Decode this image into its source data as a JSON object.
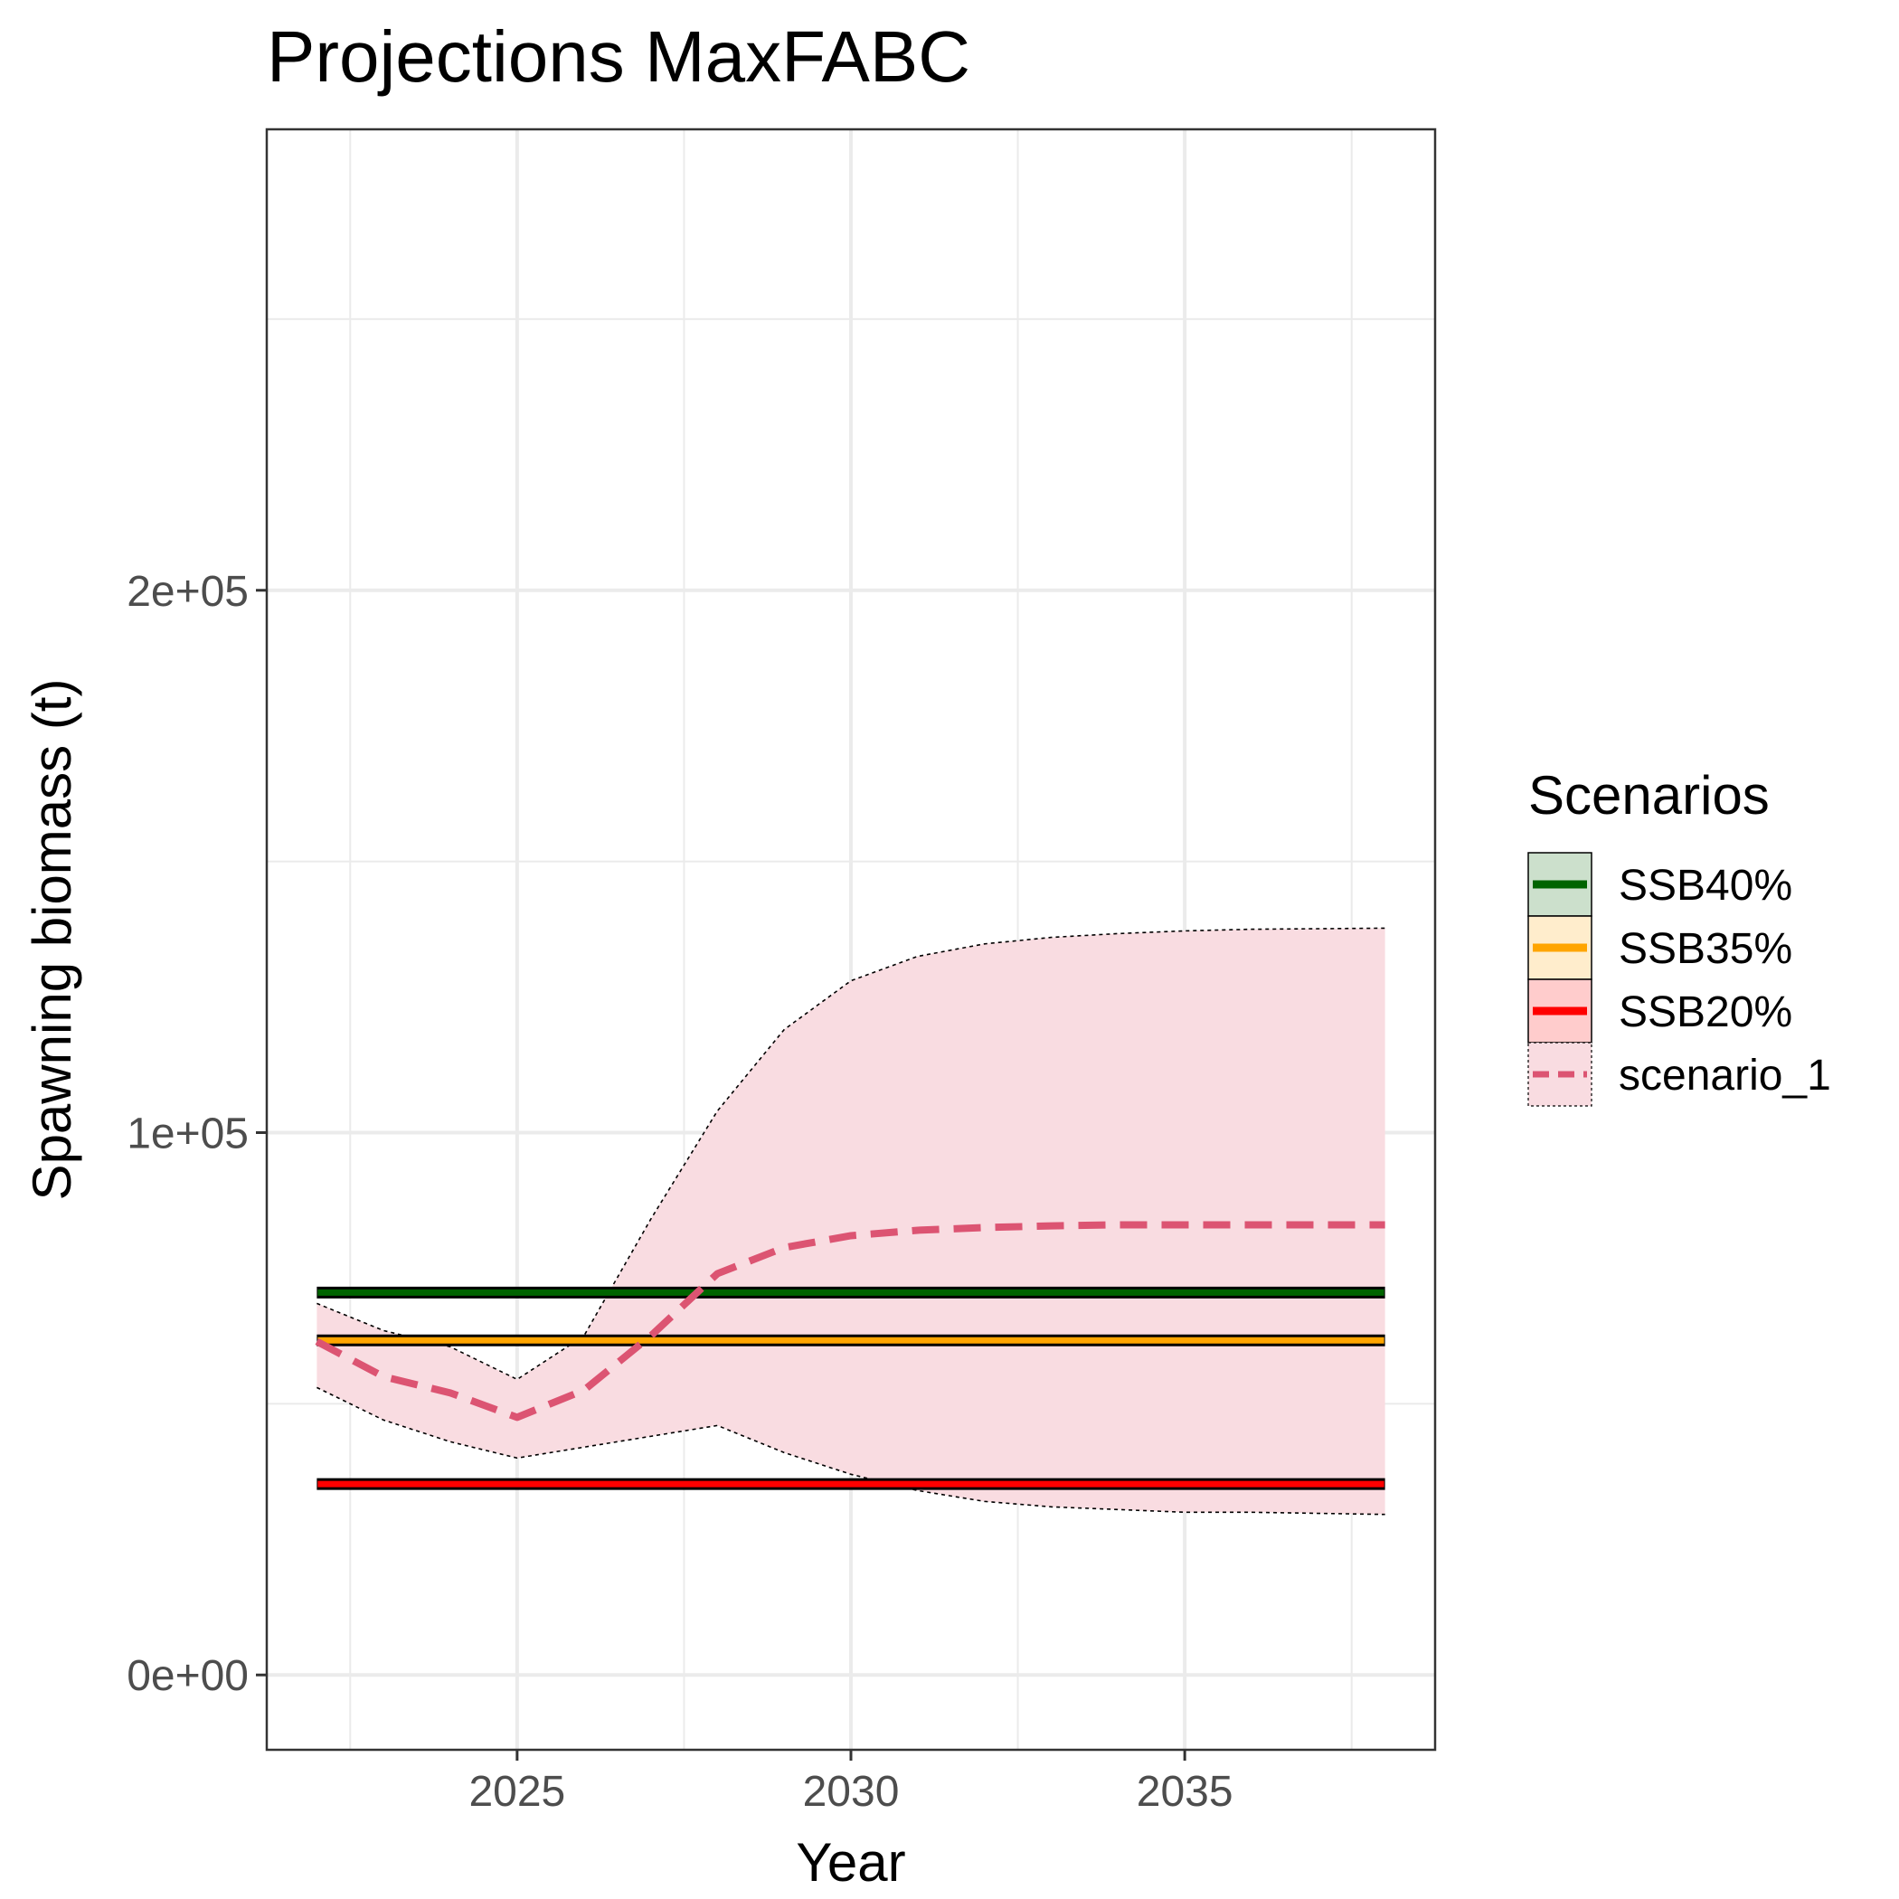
{
  "chart_data": {
    "type": "line",
    "title": "Projections MaxFABC",
    "xlabel": "Year",
    "ylabel": "Spawning biomass (t)",
    "xlim": [
      2021.25,
      2038.75
    ],
    "ylim": [
      -13800,
      285000
    ],
    "x_ticks": [
      2025,
      2030,
      2035
    ],
    "x_tick_labels": [
      "2025",
      "2030",
      "2035"
    ],
    "y_ticks": [
      0,
      100000,
      200000
    ],
    "y_tick_labels": [
      "0e+00",
      "1e+05",
      "2e+05"
    ],
    "grid": true,
    "legend_title": "Scenarios",
    "legend_position": "right",
    "reference_lines": [
      {
        "name": "SSB40%",
        "value": 70500,
        "color": "#006400",
        "fill": "#cce0cc",
        "x_range": [
          2022,
          2038
        ]
      },
      {
        "name": "SSB35%",
        "value": 61700,
        "color": "#FFA500",
        "fill": "#ffedcc",
        "x_range": [
          2022,
          2038
        ]
      },
      {
        "name": "SSB20%",
        "value": 35200,
        "color": "#FF0000",
        "fill": "#ffcccc",
        "x_range": [
          2022,
          2038
        ]
      }
    ],
    "series": [
      {
        "name": "scenario_1",
        "color": "#dc5472",
        "ribbon_fill": "#f9dce1",
        "x": [
          2022,
          2023,
          2024,
          2025,
          2026,
          2027,
          2028,
          2029,
          2030,
          2031,
          2032,
          2033,
          2034,
          2035,
          2036,
          2037,
          2038
        ],
        "mean": [
          61500,
          55000,
          52000,
          47500,
          52500,
          62500,
          74000,
          78800,
          81000,
          82000,
          82500,
          82800,
          83000,
          83000,
          83000,
          83000,
          83000
        ],
        "lower": [
          53000,
          47000,
          43000,
          40000,
          42000,
          44000,
          46000,
          41000,
          37000,
          34000,
          32000,
          31000,
          30500,
          30000,
          30000,
          29800,
          29600
        ],
        "upper": [
          68500,
          63500,
          60500,
          54500,
          62500,
          84000,
          104000,
          119000,
          128000,
          132500,
          134800,
          136000,
          136700,
          137200,
          137500,
          137600,
          137700
        ]
      }
    ]
  }
}
